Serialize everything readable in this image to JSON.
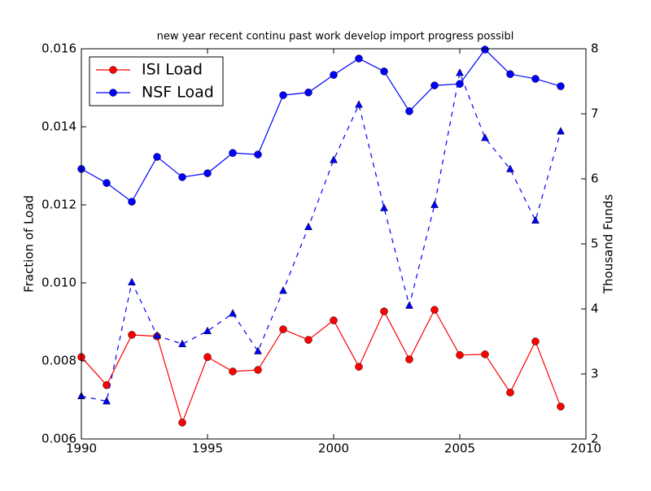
{
  "chart_data": {
    "type": "line",
    "title": "new year recent continu past work develop import progress possibl",
    "ylabel": "Fraction of Load",
    "y2label": "Thousand Funds",
    "x": [
      1990,
      1991,
      1992,
      1993,
      1994,
      1995,
      1996,
      1997,
      1998,
      1999,
      2000,
      2001,
      2002,
      2003,
      2004,
      2005,
      2006,
      2007,
      2008,
      2009
    ],
    "xlim": [
      1990,
      2010
    ],
    "xticks": [
      1990,
      1995,
      2000,
      2005,
      2010
    ],
    "ylim": [
      0.006,
      0.016
    ],
    "yticks": [
      0.006,
      0.008,
      {
        "value": 0.01,
        "label": "0.010"
      },
      0.012,
      0.014,
      0.016
    ],
    "y2lim": [
      2,
      8
    ],
    "y2ticks": [
      2,
      3,
      4,
      5,
      6,
      7,
      8
    ],
    "legend": "upper left",
    "series": [
      {
        "name": "ISI Load",
        "color": "#ff0000",
        "marker": "circle",
        "linestyle": "solid",
        "values": [
          0.0081,
          0.00738,
          0.00867,
          0.00863,
          0.00642,
          0.0081,
          0.00773,
          0.00777,
          0.00881,
          0.00854,
          0.00904,
          0.00785,
          0.00927,
          0.00804,
          0.00931,
          0.00815,
          0.00817,
          0.00719,
          0.0085,
          0.00683
        ]
      },
      {
        "name": "NSF Load",
        "color": "#0000ff",
        "marker": "circle",
        "linestyle": "solid",
        "values": [
          0.01292,
          0.01256,
          0.01208,
          0.01323,
          0.01271,
          0.01281,
          0.01333,
          0.01329,
          0.01481,
          0.01488,
          0.01533,
          0.01575,
          0.01542,
          0.0144,
          0.01506,
          0.0151,
          0.01598,
          0.01535,
          0.01523,
          0.01504
        ]
      },
      {
        "color": "#0000ff",
        "marker": "triangle",
        "linestyle": "dashed",
        "axis": "y2",
        "values": [
          2.66,
          2.58,
          4.41,
          3.59,
          3.46,
          3.66,
          3.93,
          3.35,
          4.28,
          5.26,
          6.29,
          7.14,
          5.55,
          4.05,
          5.6,
          7.63,
          6.63,
          6.15,
          5.36,
          6.73
        ]
      }
    ]
  }
}
